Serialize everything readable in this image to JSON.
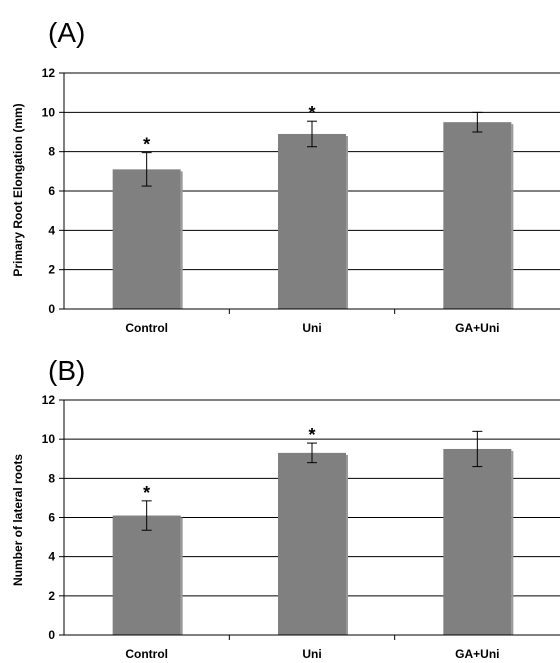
{
  "chart_data": [
    {
      "type": "bar",
      "panel_label": "(A)",
      "categories": [
        "Control",
        "Uni",
        "GA+Uni"
      ],
      "values": [
        7.1,
        8.9,
        9.5
      ],
      "errors": [
        0.85,
        0.65,
        0.5
      ],
      "significance": [
        "*",
        "*",
        ""
      ],
      "ylabel": "Primary Root Elongation (mm)",
      "ylim": [
        0,
        12
      ],
      "yticks": [
        "0",
        "2",
        "4",
        "6",
        "8",
        "10",
        "12"
      ],
      "grid": true,
      "bar_color": "#808080"
    },
    {
      "type": "bar",
      "panel_label": "(B)",
      "categories": [
        "Control",
        "Uni",
        "GA+Uni"
      ],
      "values": [
        6.1,
        9.3,
        9.5
      ],
      "errors": [
        0.75,
        0.5,
        0.9
      ],
      "significance": [
        "*",
        "*",
        ""
      ],
      "ylabel": "Number of lateral roots",
      "ylim": [
        0,
        12
      ],
      "yticks": [
        "0",
        "2",
        "4",
        "6",
        "8",
        "10",
        "12"
      ],
      "grid": true,
      "bar_color": "#808080"
    }
  ]
}
